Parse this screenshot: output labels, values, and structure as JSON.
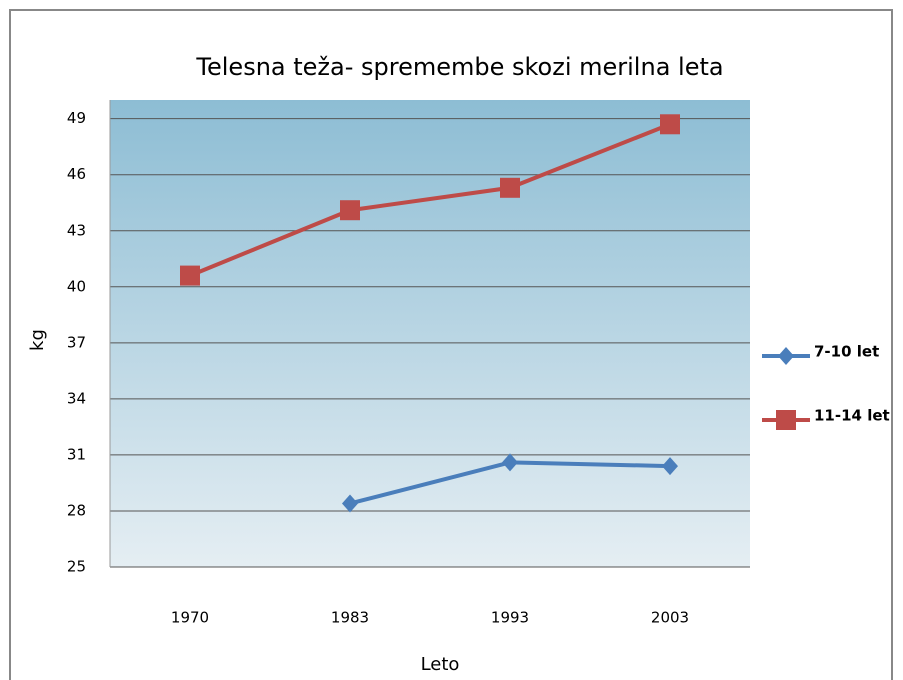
{
  "chart_data": {
    "type": "line",
    "title": "Telesna teža- spremembe skozi merilna leta",
    "x_label": "Leto",
    "y_label": "kg",
    "categories": [
      "1970",
      "1983",
      "1993",
      "2003"
    ],
    "series": [
      {
        "name": "7-10 let",
        "color": "#4a7ebb",
        "marker": "diamond",
        "values": [
          null,
          28.4,
          30.6,
          30.4
        ]
      },
      {
        "name": "11-14 let",
        "color": "#be4b48",
        "marker": "square",
        "values": [
          40.6,
          44.1,
          45.3,
          48.7
        ]
      }
    ],
    "ylim": [
      25,
      50
    ],
    "yticks": [
      25,
      28,
      31,
      34,
      37,
      40,
      43,
      46,
      49
    ],
    "grid": true,
    "legend": "right"
  }
}
